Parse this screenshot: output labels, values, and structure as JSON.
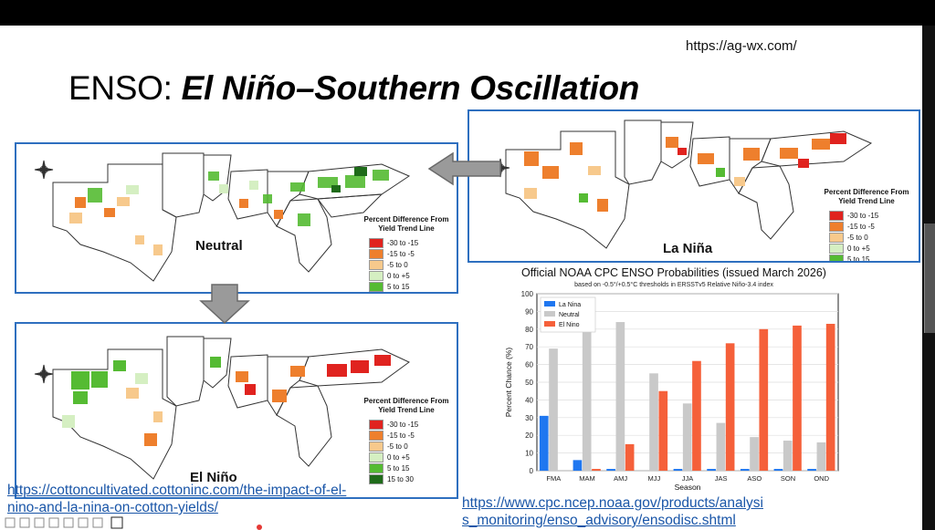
{
  "header": {
    "url": "https://ag-wx.com/",
    "title_plain": "ENSO: ",
    "title_emphasis": "El Niño–Southern Oscillation"
  },
  "legend": {
    "title": "Percent Difference From Yield Trend Line",
    "entries": [
      {
        "label": "-30 to -15",
        "color": "#e0231f"
      },
      {
        "label": "-15 to -5",
        "color": "#ee7f2d"
      },
      {
        "label": "-5 to 0",
        "color": "#f7c98c"
      },
      {
        "label": "0 to +5",
        "color": "#d5efc2"
      },
      {
        "label": "5 to 15",
        "color": "#55bb33"
      },
      {
        "label": "15 to 30",
        "color": "#1f6b1a"
      }
    ]
  },
  "panels": {
    "neutral_label": "Neutral",
    "lanina_label": "La Niña",
    "elnino_label": "El Niño",
    "border_color": "#2e6fbf"
  },
  "chart_data": {
    "type": "bar",
    "title": "Official NOAA CPC ENSO Probabilities (issued March 2026)",
    "subtitle": "based on -0.5°/+0.5°C thresholds in ERSSTv5 Relative Niño-3.4 index",
    "xlabel": "Season",
    "ylabel": "Percent Chance (%)",
    "ylim": [
      0,
      100
    ],
    "yticks": [
      0,
      10,
      20,
      30,
      40,
      50,
      60,
      70,
      80,
      90,
      100
    ],
    "categories": [
      "FMA",
      "MAM",
      "AMJ",
      "MJJ",
      "JJA",
      "JAS",
      "ASO",
      "SON",
      "OND"
    ],
    "series": [
      {
        "name": "La Nina",
        "color": "#1f77f0",
        "values": [
          31,
          6,
          1,
          0,
          1,
          1,
          1,
          1,
          1
        ]
      },
      {
        "name": "Neutral",
        "color": "#c9c9c9",
        "values": [
          69,
          93,
          84,
          55,
          38,
          27,
          19,
          17,
          16
        ]
      },
      {
        "name": "El Nino",
        "color": "#f5603a",
        "values": [
          0,
          1,
          15,
          45,
          62,
          72,
          80,
          82,
          83
        ]
      }
    ],
    "grid": true,
    "legend_position": "top-left"
  },
  "links": {
    "cotton_line1": "https://cottoncultivated.cottoninc.com/the-impact-of-el-",
    "cotton_line2": "nino-and-la-nina-on-cotton-yields/",
    "cpc_line1": "https://www.cpc.ncep.noaa.gov/products/analysi",
    "cpc_line2": "s_monitoring/enso_advisory/ensodisc.shtml"
  }
}
